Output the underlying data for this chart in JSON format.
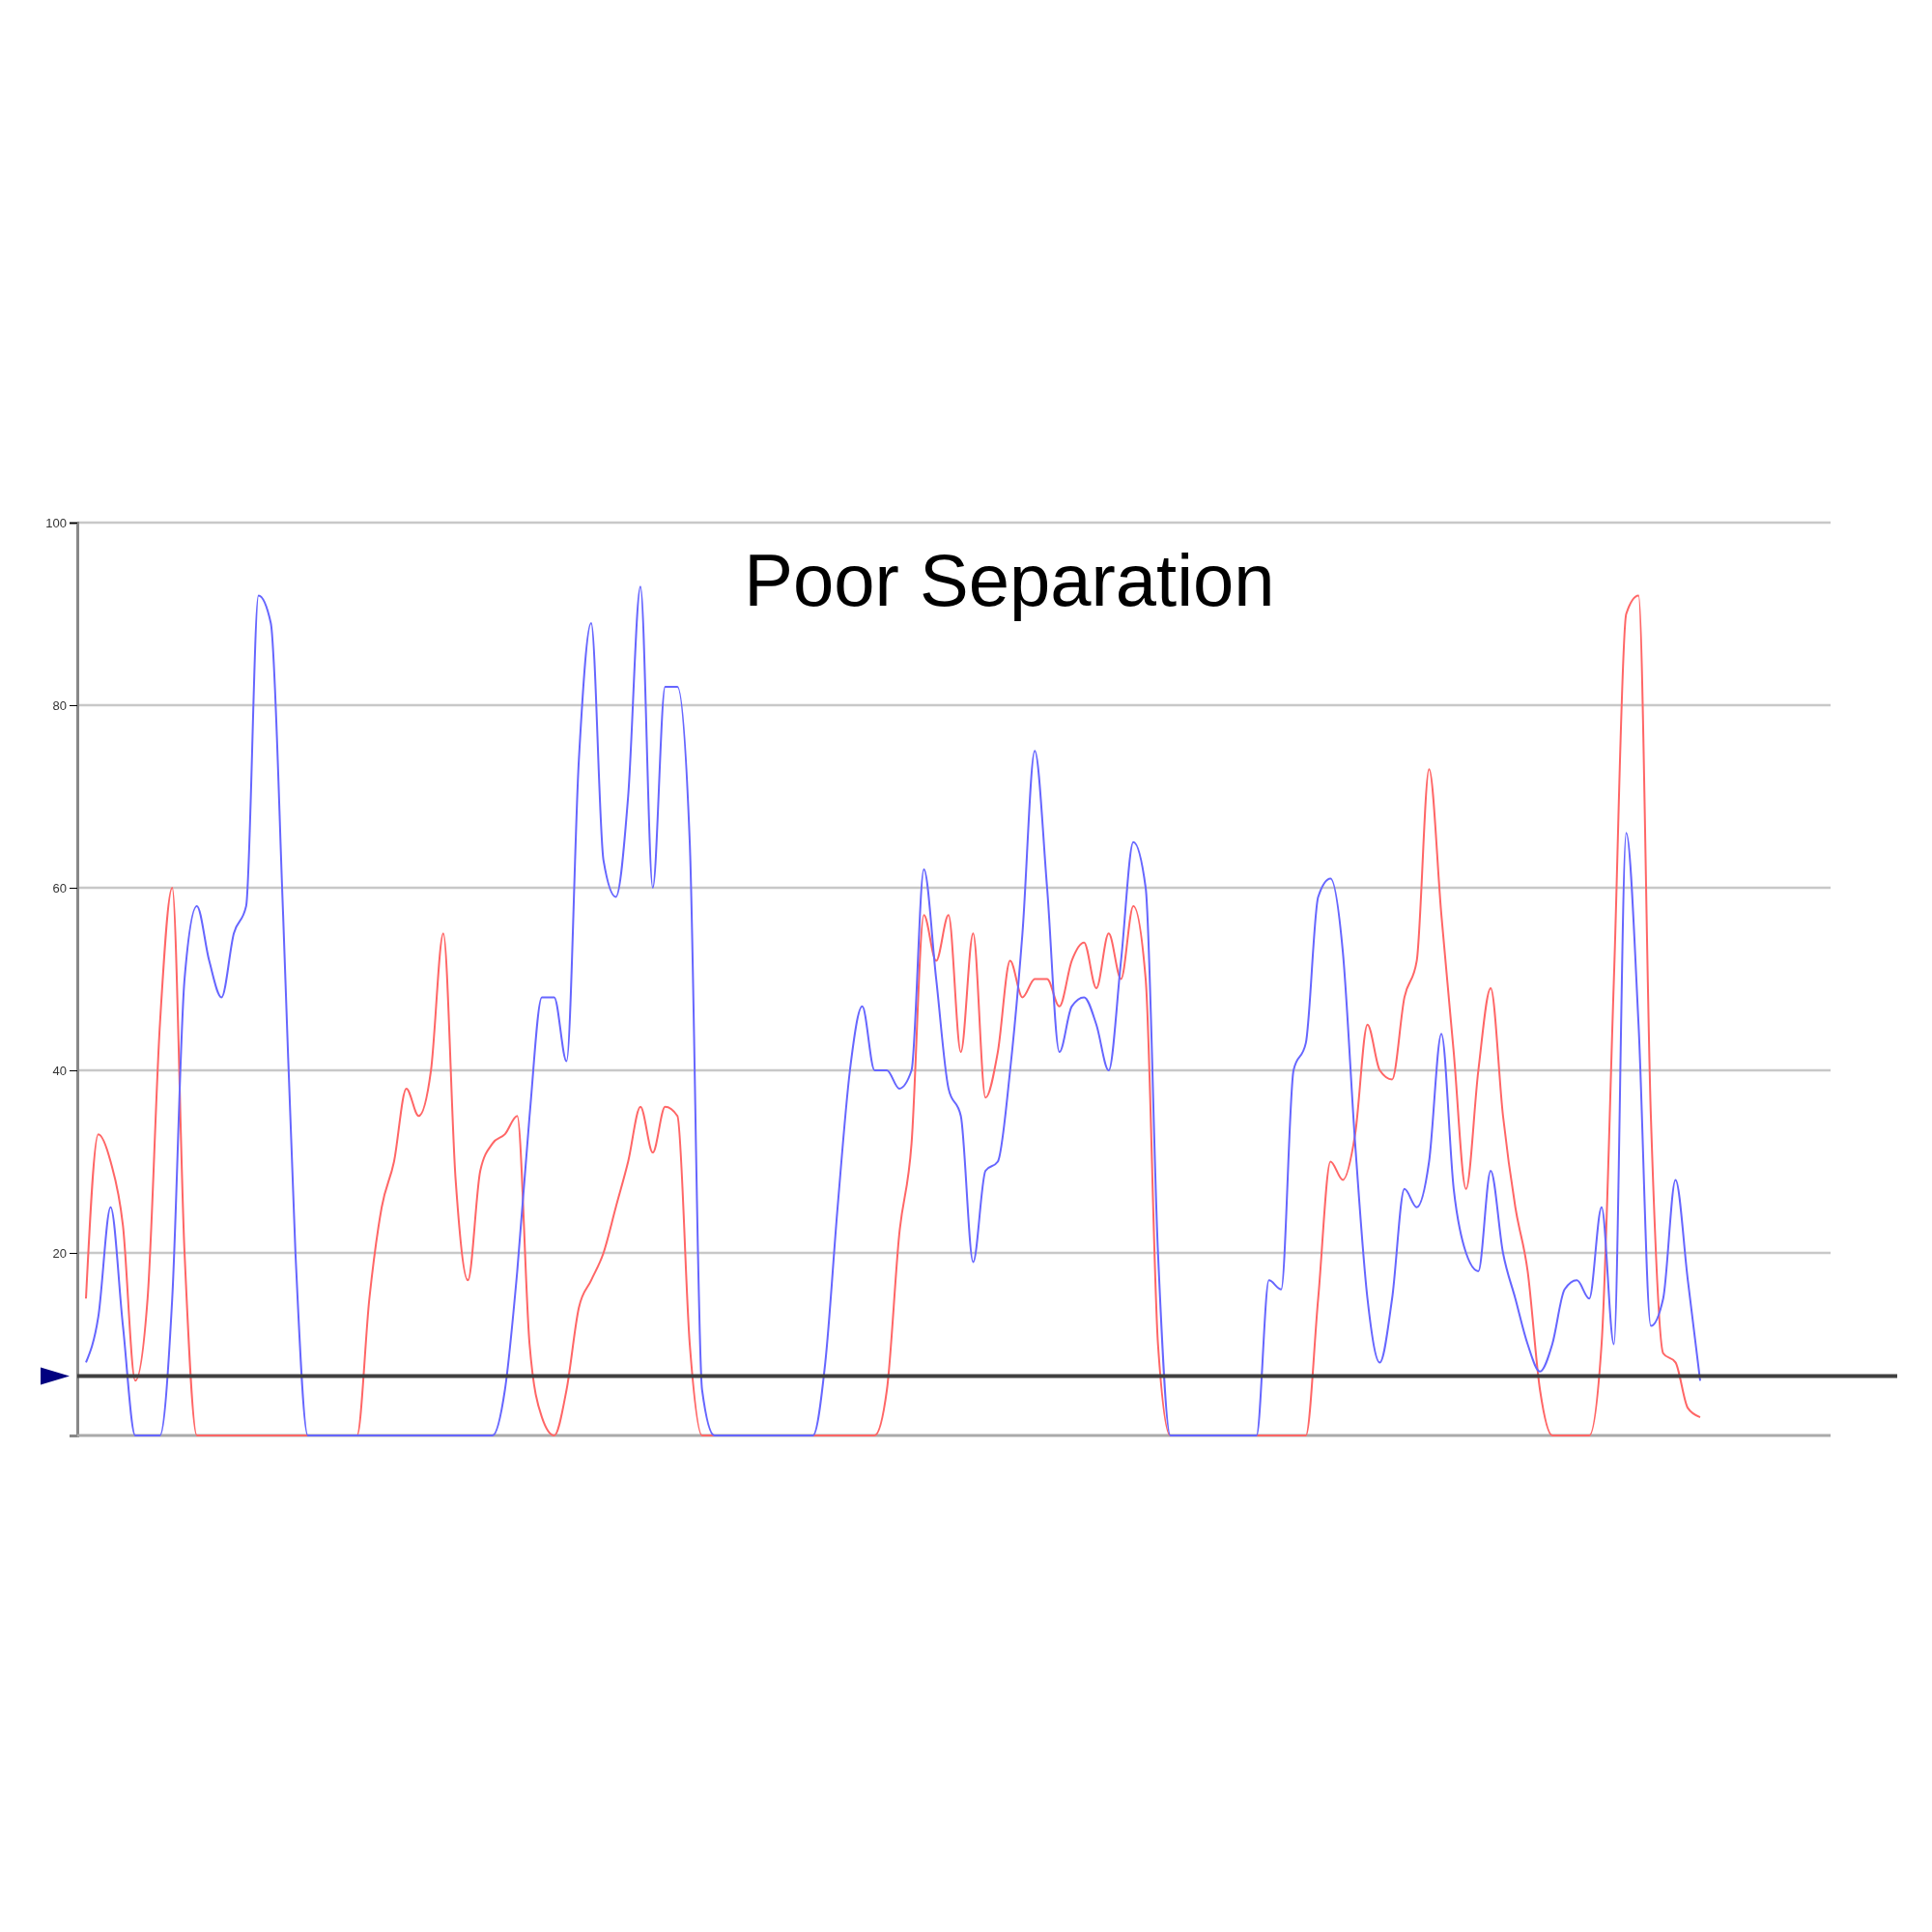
{
  "chart_data": {
    "type": "line",
    "title": "Poor Separation",
    "categories": [
      null,
      null,
      null,
      null,
      null,
      null,
      null,
      null,
      null,
      null,
      null,
      null,
      null,
      null,
      null,
      null,
      null,
      null,
      null,
      null,
      null,
      null,
      null,
      null,
      null,
      null,
      null,
      null,
      null,
      null,
      null,
      null,
      null,
      null,
      null,
      null,
      null,
      null,
      null,
      null,
      null,
      null,
      null,
      null,
      null,
      null,
      null,
      null,
      null,
      null,
      null,
      null,
      null,
      null,
      null,
      null,
      null,
      null,
      null,
      null,
      null,
      null,
      null,
      null,
      null,
      null,
      null,
      null,
      null,
      null,
      null,
      null,
      null,
      null,
      null,
      null,
      null,
      null,
      null,
      null,
      null,
      null,
      null,
      null,
      null,
      null,
      null,
      null,
      null,
      null,
      null,
      null,
      null,
      null,
      null,
      null,
      null,
      null,
      null,
      null,
      null,
      null,
      null,
      null,
      null,
      null,
      null,
      null,
      null,
      null,
      null,
      null,
      null,
      null,
      null,
      null,
      null,
      null,
      null,
      null,
      null,
      null,
      null,
      null,
      null,
      null,
      null,
      null,
      null,
      null,
      null,
      null
    ],
    "series": [
      {
        "color": "#ff6666",
        "values": [
          15,
          33,
          30,
          23,
          6,
          15,
          45,
          60,
          20,
          0,
          0,
          0,
          0,
          0,
          0,
          0,
          0,
          0,
          0,
          0,
          0,
          0,
          0,
          15,
          25,
          30,
          38,
          35,
          40,
          55,
          28,
          17,
          29,
          32,
          33,
          35,
          10,
          2,
          0,
          5,
          14,
          17,
          20,
          25,
          30,
          36,
          31,
          36,
          35,
          10,
          0,
          0,
          0,
          0,
          0,
          0,
          0,
          0,
          0,
          0,
          0,
          0,
          0,
          0,
          0,
          5,
          22,
          32,
          57,
          52,
          57,
          42,
          55,
          37,
          42,
          52,
          48,
          50,
          50,
          47,
          52,
          54,
          49,
          55,
          50,
          58,
          50,
          10,
          0,
          0,
          0,
          0,
          0,
          0,
          0,
          0,
          0,
          0,
          0,
          0,
          15,
          30,
          28,
          33,
          45,
          40,
          39,
          48,
          52,
          73,
          57,
          42,
          27,
          40,
          49,
          35,
          25,
          18,
          5,
          0,
          0,
          0,
          0,
          10,
          50,
          90,
          92,
          35,
          9,
          8,
          3,
          2
        ]
      },
      {
        "color": "#6666ff",
        "values": [
          8,
          13,
          25,
          12,
          0,
          0,
          0,
          15,
          50,
          58,
          52,
          48,
          55,
          58,
          92,
          89,
          57,
          20,
          0,
          0,
          0,
          0,
          0,
          0,
          0,
          0,
          0,
          0,
          0,
          0,
          0,
          0,
          0,
          0,
          5,
          18,
          35,
          48,
          48,
          41,
          74,
          89,
          63,
          59,
          70,
          93,
          60,
          82,
          82,
          65,
          5,
          0,
          0,
          0,
          0,
          0,
          0,
          0,
          0,
          0,
          8,
          25,
          40,
          47,
          40,
          40,
          38,
          40,
          62,
          50,
          38,
          35,
          19,
          29,
          30,
          40,
          55,
          75,
          60,
          42,
          47,
          48,
          45,
          40,
          52,
          65,
          60,
          20,
          0,
          0,
          0,
          0,
          0,
          0,
          0,
          0,
          17,
          16,
          40,
          43,
          59,
          61,
          53,
          32,
          15,
          8,
          15,
          27,
          25,
          30,
          44,
          27,
          20,
          18,
          29,
          20,
          15,
          10,
          7,
          10,
          16,
          17,
          15,
          25,
          10,
          66,
          45,
          12,
          15,
          28,
          17,
          6
        ]
      }
    ],
    "ylim": [
      0,
      100
    ],
    "yticks": [
      20,
      40,
      60,
      80,
      100
    ],
    "grid": "y",
    "ref_lines": [
      {
        "axis": "y",
        "value": 6.5,
        "color": "#404040"
      }
    ]
  }
}
